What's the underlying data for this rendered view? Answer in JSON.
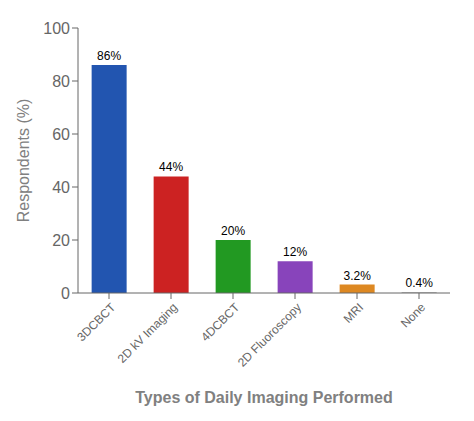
{
  "chart_data": {
    "type": "bar",
    "categories": [
      "3DCBCT",
      "2D kV Imaging",
      "4DCBCT",
      "2D Fluoroscopy",
      "MRI",
      "None"
    ],
    "values": [
      86,
      44,
      20,
      12,
      3.2,
      0.4
    ],
    "value_labels": [
      "86%",
      "44%",
      "20%",
      "12%",
      "3.2%",
      "0.4%"
    ],
    "colors": [
      "#2255b0",
      "#cc2222",
      "#229922",
      "#8844bb",
      "#dd8822",
      "#bbbbbb"
    ],
    "xlabel": "Types of Daily Imaging Performed",
    "ylabel": "Respondents (%)",
    "ylim": [
      0,
      100
    ],
    "yticks": [
      0,
      20,
      40,
      60,
      80,
      100
    ],
    "grid": false,
    "data_labels": true
  }
}
